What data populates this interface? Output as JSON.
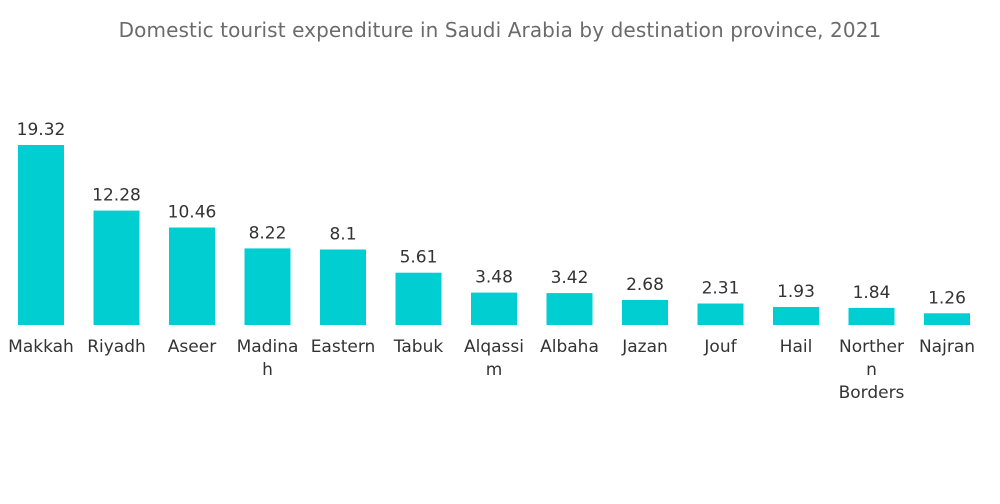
{
  "chart_data": {
    "type": "bar",
    "title": "Domestic tourist expenditure in Saudi Arabia by destination province,  2021",
    "categories": [
      "Makkah",
      "Riyadh",
      "Aseer",
      "Madinah",
      "Eastern",
      "Tabuk",
      "Alqassim",
      "Albaha",
      "Jazan",
      "Jouf",
      "Hail",
      "Northern Borders",
      "Najran"
    ],
    "category_display_lines": [
      [
        "Makkah"
      ],
      [
        "Riyadh"
      ],
      [
        "Aseer"
      ],
      [
        "Madina",
        "h"
      ],
      [
        "Eastern"
      ],
      [
        "Tabuk"
      ],
      [
        "Alqassi",
        "m"
      ],
      [
        "Albaha"
      ],
      [
        "Jazan"
      ],
      [
        "Jouf"
      ],
      [
        "Hail"
      ],
      [
        "Norther",
        "n",
        "Borders"
      ],
      [
        "Najran"
      ]
    ],
    "values": [
      19.32,
      12.28,
      10.46,
      8.22,
      8.1,
      5.61,
      3.48,
      3.42,
      2.68,
      2.31,
      1.93,
      1.84,
      1.26
    ],
    "value_labels": [
      "19.32",
      "12.28",
      "10.46",
      "8.22",
      "8.1",
      "5.61",
      "3.48",
      "3.42",
      "2.68",
      "2.31",
      "1.93",
      "1.84",
      "1.26"
    ],
    "ylim": [
      0,
      19.32
    ],
    "grid": false,
    "legend": "none",
    "bar_color": "#00CED1"
  }
}
